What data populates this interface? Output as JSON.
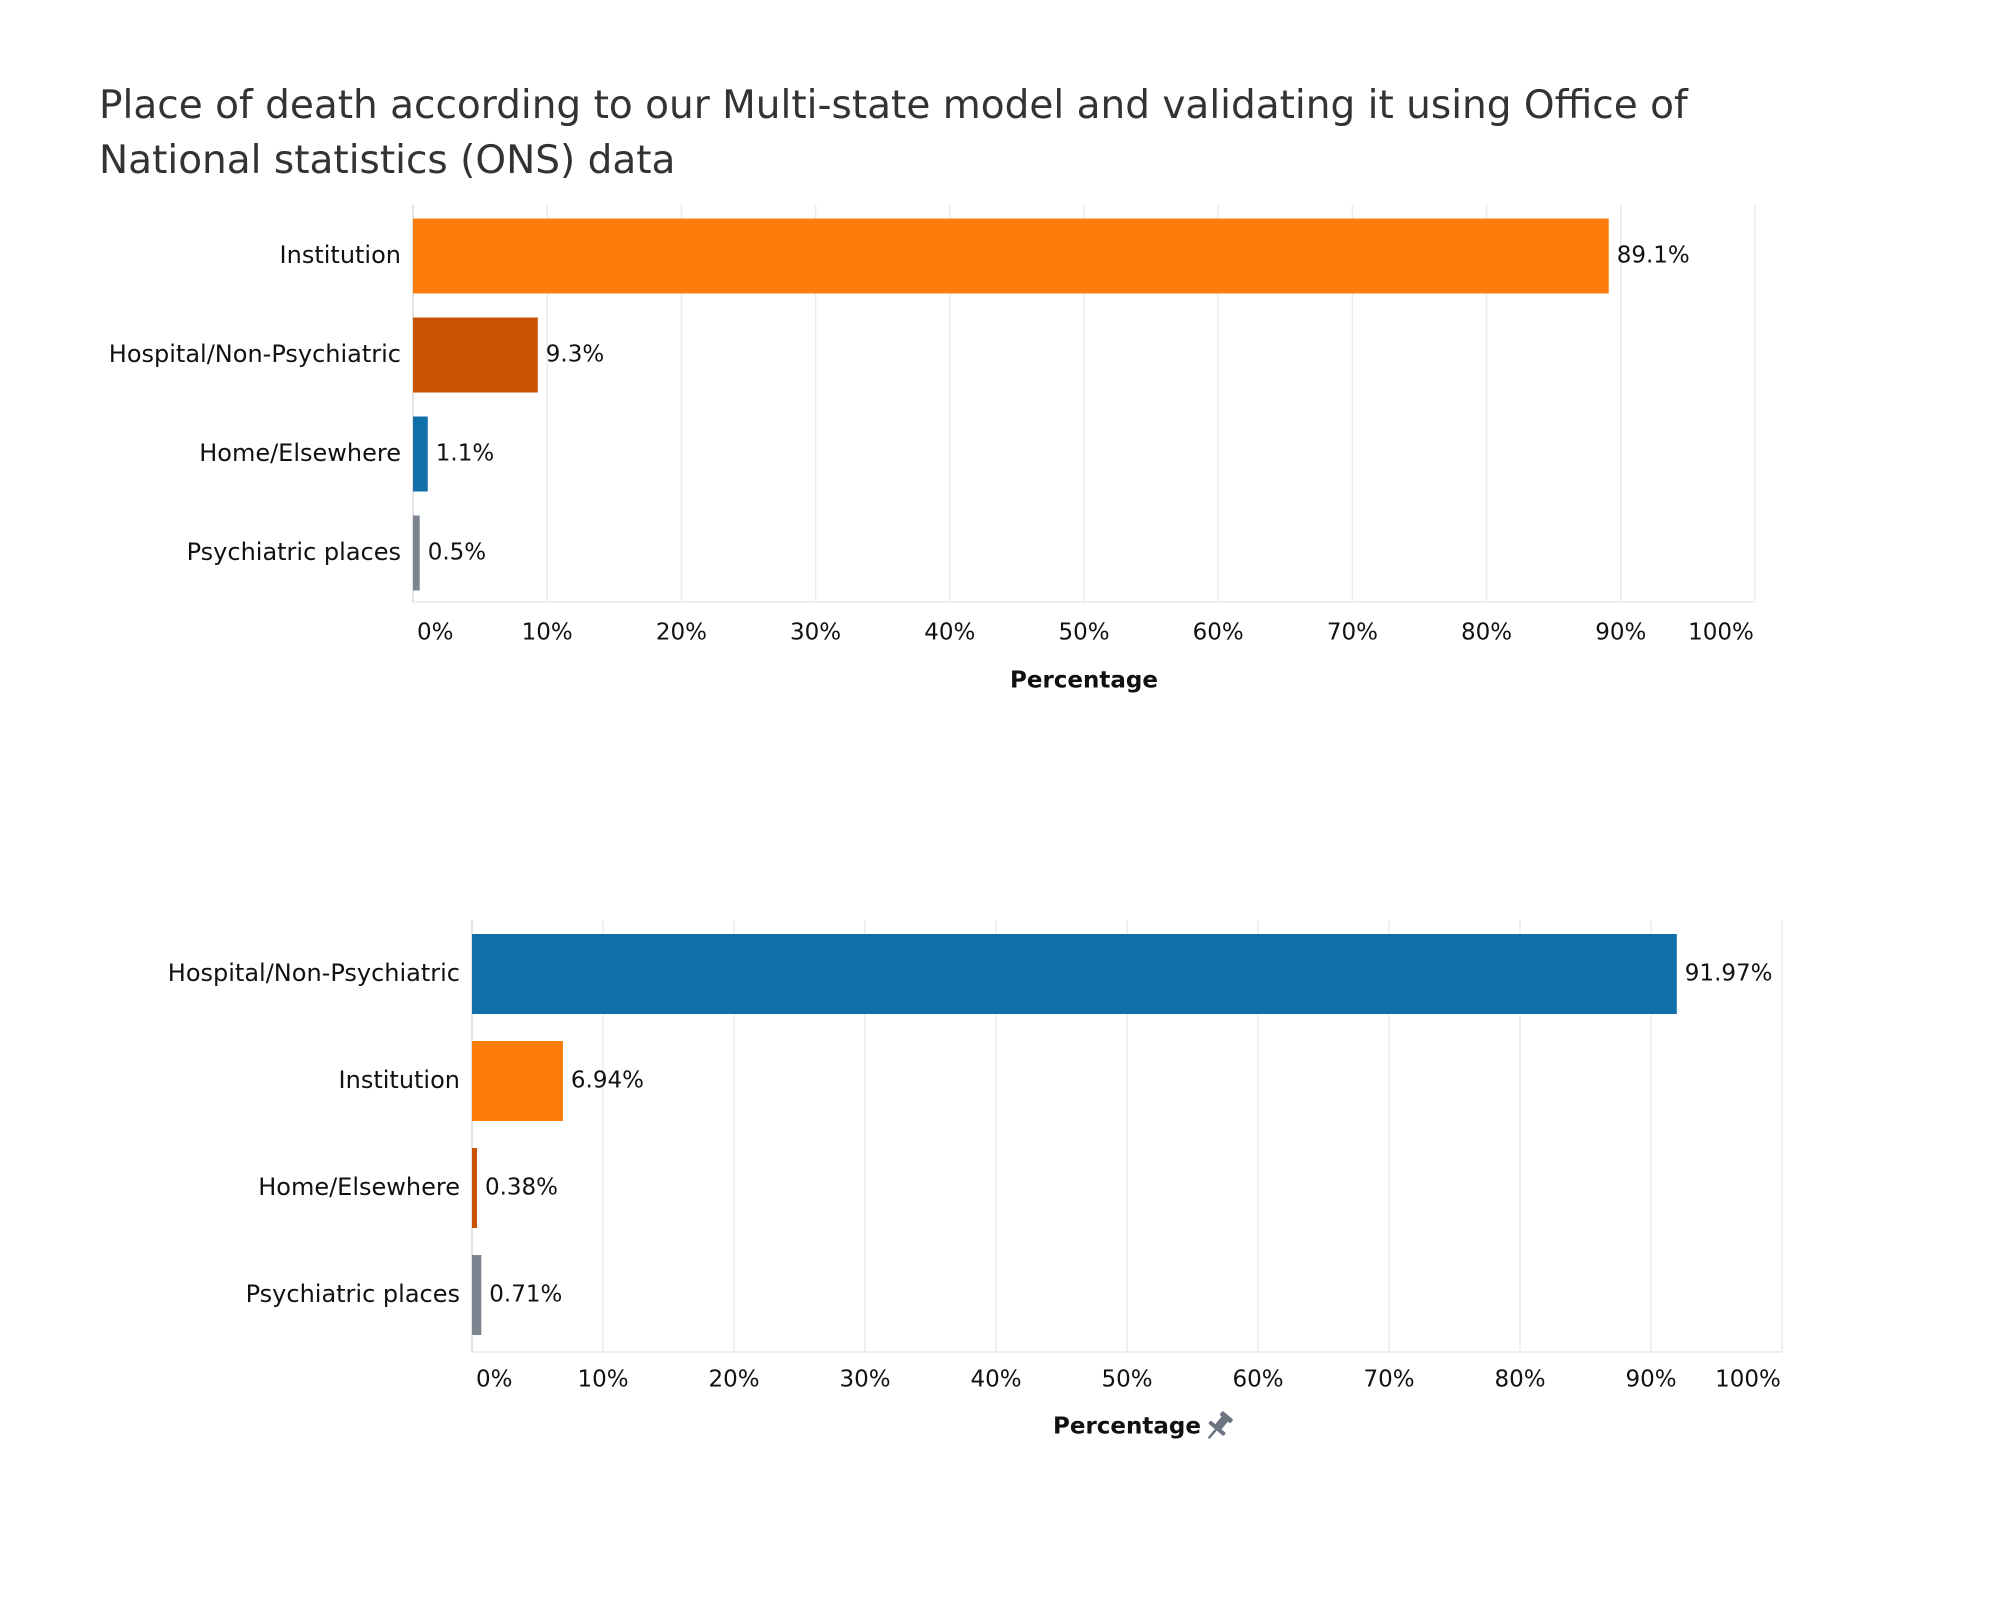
{
  "title": "Place of death according to our Multi-state model and validating it using Office of National statistics (ONS) data",
  "chart_data": [
    {
      "type": "bar",
      "orientation": "horizontal",
      "categories": [
        "Institution",
        "Hospital/Non-Psychiatric",
        "Home/Elsewhere",
        "Psychiatric places"
      ],
      "values": [
        89.1,
        9.3,
        1.1,
        0.5
      ],
      "value_labels": [
        "89.1%",
        "9.3%",
        "1.1%",
        "0.5%"
      ],
      "colors": [
        "#fc7d0b",
        "#c85200",
        "#1170aa",
        "#7b848f"
      ],
      "xlabel": "Percentage",
      "xlim": [
        0,
        100
      ],
      "xticks": [
        "0%",
        "10%",
        "20%",
        "30%",
        "40%",
        "50%",
        "60%",
        "70%",
        "80%",
        "90%",
        "100%"
      ],
      "grid": true
    },
    {
      "type": "bar",
      "orientation": "horizontal",
      "categories": [
        "Hospital/Non-Psychiatric",
        "Institution",
        "Home/Elsewhere",
        "Psychiatric places"
      ],
      "values": [
        91.97,
        6.94,
        0.38,
        0.71
      ],
      "value_labels": [
        "91.97%",
        "6.94%",
        "0.38%",
        "0.71%"
      ],
      "colors": [
        "#1170aa",
        "#fc7d0b",
        "#c85200",
        "#7b848f"
      ],
      "xlabel": "Percentage",
      "xlabel_icon": "pin-icon",
      "xlim": [
        0,
        100
      ],
      "xticks": [
        "0%",
        "10%",
        "20%",
        "30%",
        "40%",
        "50%",
        "60%",
        "70%",
        "80%",
        "90%",
        "100%"
      ],
      "grid": true
    }
  ]
}
